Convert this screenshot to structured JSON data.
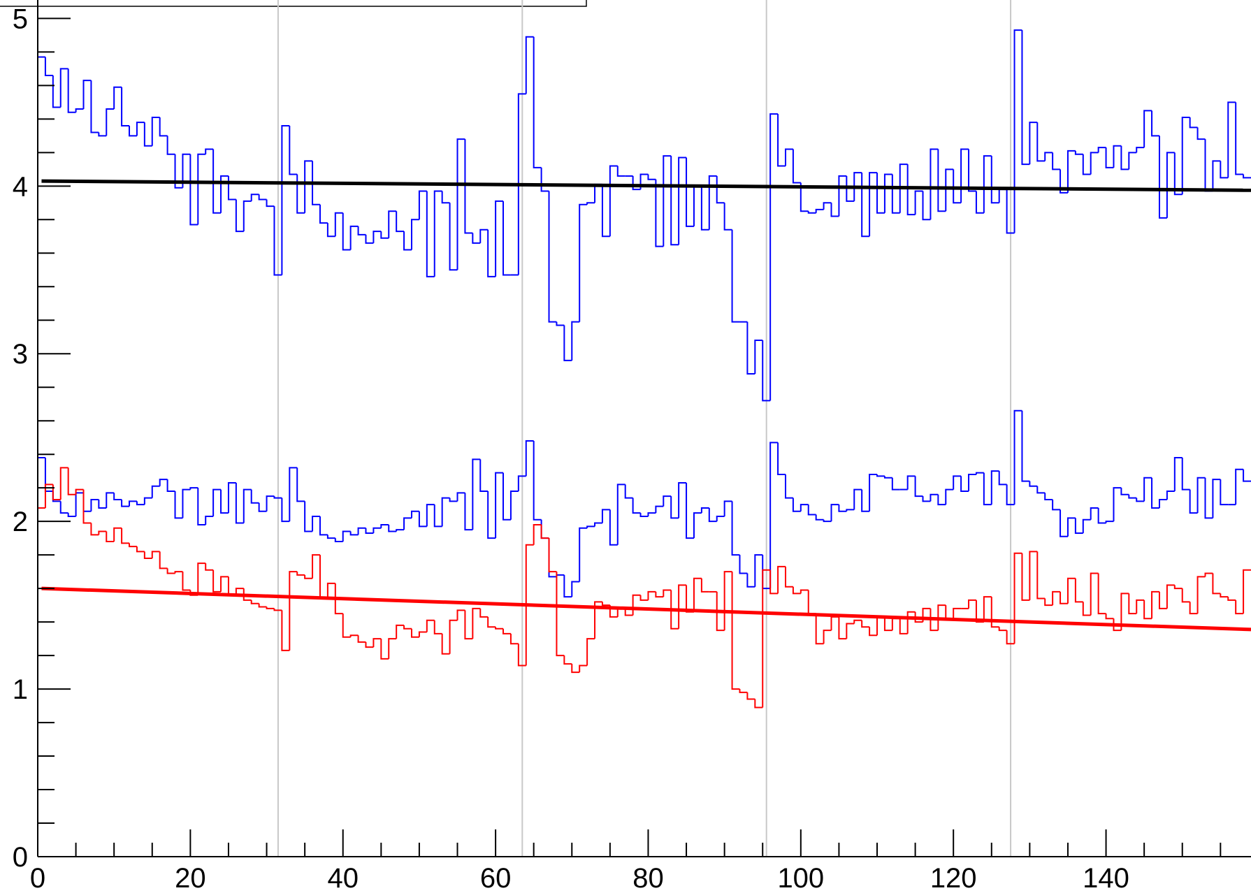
{
  "chart_data": {
    "type": "histogram",
    "bins": [
      0,
      1,
      2,
      3,
      4,
      5,
      6,
      7,
      8,
      9,
      10,
      11,
      12,
      13,
      14,
      15,
      16,
      17,
      18,
      19,
      20,
      21,
      22,
      23,
      24,
      25,
      26,
      27,
      28,
      29,
      30,
      31,
      32,
      33,
      34,
      35,
      36,
      37,
      38,
      39,
      40,
      41,
      42,
      43,
      44,
      45,
      46,
      47,
      48,
      49,
      50,
      51,
      52,
      53,
      54,
      55,
      56,
      57,
      58,
      59,
      60,
      61,
      62,
      63,
      64,
      65,
      66,
      67,
      68,
      69,
      70,
      71,
      72,
      73,
      74,
      75,
      76,
      77,
      78,
      79,
      80,
      81,
      82,
      83,
      84,
      85,
      86,
      87,
      88,
      89,
      90,
      91,
      92,
      93,
      94,
      95,
      96,
      97,
      98,
      99,
      100,
      101,
      102,
      103,
      104,
      105,
      106,
      107,
      108,
      109,
      110,
      111,
      112,
      113,
      114,
      115,
      116,
      117,
      118,
      119,
      120,
      121,
      122,
      123,
      124,
      125,
      126,
      127,
      128,
      129,
      130,
      131,
      132,
      133,
      134,
      135,
      136,
      137,
      138,
      139,
      140,
      141,
      142,
      143,
      144,
      145,
      146,
      147,
      148,
      149,
      150,
      151,
      152,
      153,
      154,
      155,
      156,
      157,
      158,
      159
    ],
    "series": [
      {
        "color": "#0000ff",
        "values": [
          4.77,
          4.66,
          4.47,
          4.7,
          4.44,
          4.46,
          4.63,
          4.32,
          4.3,
          4.46,
          4.59,
          4.36,
          4.3,
          4.38,
          4.24,
          4.41,
          4.3,
          4.19,
          3.99,
          4.19,
          3.77,
          4.19,
          4.22,
          3.84,
          4.06,
          3.92,
          3.73,
          3.91,
          3.95,
          3.92,
          3.88,
          3.47,
          4.36,
          4.07,
          3.84,
          4.15,
          3.89,
          3.78,
          3.7,
          3.84,
          3.62,
          3.76,
          3.71,
          3.66,
          3.73,
          3.69,
          3.85,
          3.73,
          3.62,
          3.8,
          3.97,
          3.46,
          3.97,
          3.9,
          3.5,
          4.28,
          3.72,
          3.66,
          3.74,
          3.46,
          3.91,
          3.47,
          3.47,
          4.55,
          4.89,
          4.11,
          3.97,
          3.19,
          3.17,
          2.96,
          3.19,
          3.89,
          3.9,
          4.01,
          3.7,
          4.12,
          4.06,
          4.06,
          3.98,
          4.07,
          4.04,
          3.64,
          4.18,
          3.65,
          4.17,
          3.76,
          4.0,
          3.74,
          4.06,
          3.9,
          3.74,
          3.19,
          3.19,
          2.88,
          3.08,
          2.72,
          4.43,
          4.12,
          4.22,
          4.02,
          3.85,
          3.84,
          3.86,
          3.9,
          3.82,
          4.06,
          3.91,
          4.08,
          3.7,
          4.08,
          3.84,
          4.07,
          3.84,
          4.13,
          3.83,
          3.97,
          3.8,
          4.22,
          3.85,
          4.1,
          3.9,
          4.22,
          3.97,
          3.84,
          4.18,
          3.9,
          3.98,
          3.72,
          4.93,
          4.13,
          4.38,
          4.15,
          4.2,
          4.1,
          3.96,
          4.21,
          4.19,
          4.07,
          4.2,
          4.23,
          4.11,
          4.24,
          4.1,
          4.2,
          4.23,
          4.45,
          4.3,
          3.81,
          4.2,
          3.95,
          4.41,
          4.35,
          4.28,
          3.97,
          4.15,
          4.05,
          4.5,
          4.07,
          4.05
        ]
      },
      {
        "color": "#0000ff",
        "values": [
          2.38,
          2.18,
          2.12,
          2.05,
          2.03,
          2.17,
          2.06,
          2.13,
          2.08,
          2.17,
          2.13,
          2.09,
          2.12,
          2.1,
          2.14,
          2.21,
          2.25,
          2.18,
          2.02,
          2.19,
          2.2,
          1.98,
          2.03,
          2.19,
          2.05,
          2.23,
          1.99,
          2.19,
          2.11,
          2.06,
          2.15,
          2.14,
          2.0,
          2.32,
          2.12,
          1.94,
          2.03,
          1.92,
          1.9,
          1.88,
          1.94,
          1.92,
          1.96,
          1.93,
          1.96,
          1.98,
          1.94,
          1.95,
          2.02,
          2.06,
          1.97,
          2.1,
          1.97,
          2.14,
          2.12,
          2.17,
          1.95,
          2.37,
          2.18,
          1.9,
          2.29,
          2.01,
          2.18,
          2.27,
          2.48,
          2.01,
          1.9,
          1.67,
          1.68,
          1.55,
          1.64,
          1.96,
          1.97,
          1.99,
          2.07,
          1.86,
          2.22,
          2.14,
          2.05,
          2.03,
          2.05,
          2.09,
          2.15,
          2.02,
          2.23,
          1.9,
          2.05,
          2.08,
          2.0,
          2.03,
          2.12,
          1.8,
          1.69,
          1.61,
          1.8,
          1.6,
          2.47,
          2.28,
          2.14,
          2.06,
          2.1,
          2.04,
          2.01,
          2.0,
          2.1,
          2.06,
          2.07,
          2.19,
          2.06,
          2.28,
          2.27,
          2.26,
          2.19,
          2.19,
          2.27,
          2.15,
          2.12,
          2.16,
          2.1,
          2.19,
          2.27,
          2.18,
          2.28,
          2.29,
          2.1,
          2.3,
          2.22,
          2.1,
          2.66,
          2.24,
          2.21,
          2.17,
          2.13,
          2.07,
          1.91,
          2.02,
          1.93,
          2.01,
          2.08,
          1.99,
          2.0,
          2.2,
          2.16,
          2.14,
          2.12,
          2.26,
          2.08,
          2.13,
          2.18,
          2.38,
          2.19,
          2.05,
          2.26,
          2.02,
          2.25,
          2.1,
          2.1,
          2.31,
          2.24
        ]
      },
      {
        "color": "#ff0000",
        "values": [
          2.08,
          2.22,
          2.13,
          2.32,
          2.16,
          2.19,
          1.99,
          1.92,
          1.94,
          1.88,
          1.96,
          1.87,
          1.85,
          1.82,
          1.78,
          1.82,
          1.72,
          1.69,
          1.7,
          1.59,
          1.56,
          1.75,
          1.71,
          1.58,
          1.67,
          1.56,
          1.6,
          1.53,
          1.51,
          1.49,
          1.48,
          1.47,
          1.23,
          1.7,
          1.68,
          1.66,
          1.8,
          1.54,
          1.63,
          1.45,
          1.31,
          1.32,
          1.28,
          1.25,
          1.3,
          1.18,
          1.3,
          1.38,
          1.36,
          1.31,
          1.34,
          1.41,
          1.33,
          1.21,
          1.41,
          1.47,
          1.3,
          1.48,
          1.43,
          1.37,
          1.36,
          1.33,
          1.27,
          1.14,
          1.86,
          1.98,
          1.9,
          1.7,
          1.2,
          1.15,
          1.1,
          1.14,
          1.3,
          1.52,
          1.5,
          1.43,
          1.48,
          1.44,
          1.56,
          1.53,
          1.58,
          1.55,
          1.59,
          1.36,
          1.62,
          1.46,
          1.66,
          1.58,
          1.58,
          1.35,
          1.7,
          1.0,
          0.98,
          0.94,
          0.89,
          1.71,
          1.57,
          1.73,
          1.61,
          1.57,
          1.59,
          1.45,
          1.27,
          1.35,
          1.43,
          1.3,
          1.39,
          1.41,
          1.37,
          1.32,
          1.43,
          1.35,
          1.42,
          1.33,
          1.46,
          1.4,
          1.48,
          1.35,
          1.5,
          1.42,
          1.48,
          1.48,
          1.53,
          1.4,
          1.55,
          1.37,
          1.35,
          1.27,
          1.81,
          1.53,
          1.82,
          1.54,
          1.5,
          1.58,
          1.51,
          1.66,
          1.52,
          1.44,
          1.69,
          1.45,
          1.42,
          1.35,
          1.57,
          1.45,
          1.53,
          1.42,
          1.58,
          1.48,
          1.62,
          1.6,
          1.52,
          1.45,
          1.67,
          1.69,
          1.57,
          1.55,
          1.53,
          1.45,
          1.71
        ]
      }
    ],
    "fits": [
      {
        "color": "#000000",
        "x": [
          0.5,
          159
        ],
        "values": [
          4.03,
          3.975
        ]
      },
      {
        "color": "#ff0000",
        "x": [
          0.5,
          159
        ],
        "values": [
          1.6,
          1.355
        ]
      }
    ],
    "xlim": [
      0,
      159
    ],
    "ylim": [
      0,
      5.11
    ],
    "xticks": [
      0,
      20,
      40,
      60,
      80,
      100,
      120,
      140
    ],
    "x_minor_ticks": [
      5,
      10,
      15,
      25,
      30,
      35,
      45,
      50,
      55,
      65,
      70,
      75,
      85,
      90,
      95,
      105,
      110,
      115,
      125,
      130,
      135,
      145,
      150,
      155
    ],
    "yticks": [
      0,
      1,
      2,
      3,
      4,
      5
    ],
    "y_minor_ticks": [
      0.2,
      0.4,
      0.6,
      0.8,
      1.2,
      1.4,
      1.6,
      1.8,
      2.2,
      2.4,
      2.6,
      2.8,
      3.2,
      3.4,
      3.6,
      3.8,
      4.2,
      4.4,
      4.6,
      4.8
    ],
    "vlines": [
      31.5,
      63.5,
      95.5,
      127.5
    ]
  }
}
